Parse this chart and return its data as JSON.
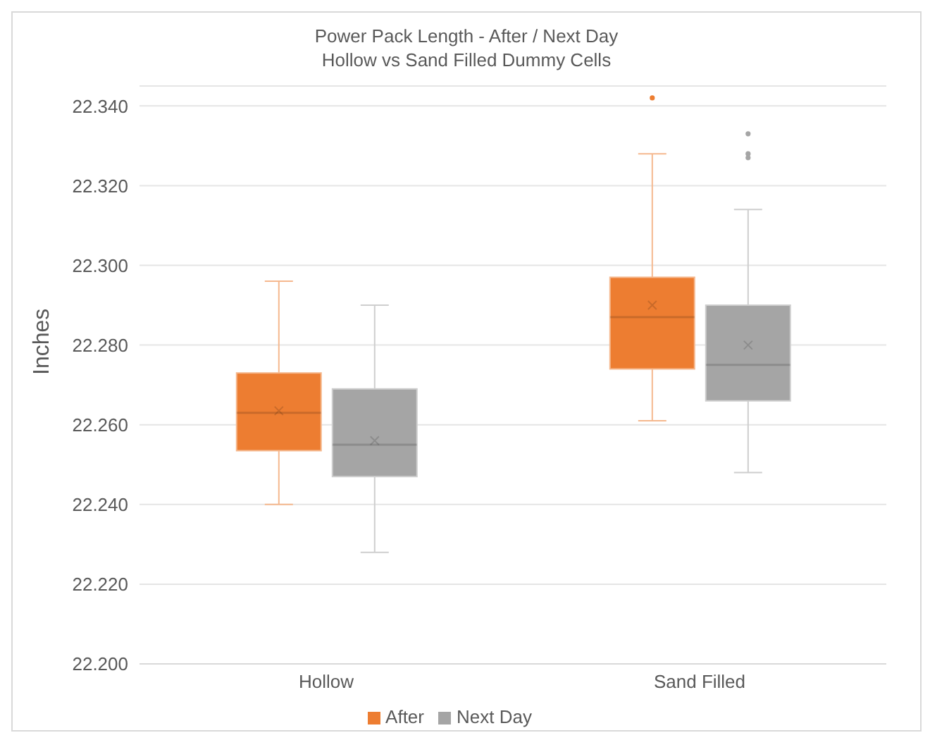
{
  "chart_data": {
    "type": "box",
    "title": "Power Pack Length - After / Next Day",
    "subtitle": "Hollow vs Sand Filled Dummy Cells",
    "ylabel": "Inches",
    "categories": [
      "Hollow",
      "Sand Filled"
    ],
    "series": [
      {
        "name": "After",
        "color": "#ed7d31",
        "boxes": [
          {
            "low": 22.24,
            "q1": 22.2535,
            "median": 22.263,
            "q3": 22.273,
            "high": 22.296,
            "mean": 22.2635
          },
          {
            "low": 22.261,
            "q1": 22.274,
            "median": 22.287,
            "q3": 22.297,
            "high": 22.328,
            "mean": 22.29,
            "outliers": [
              22.342
            ]
          }
        ]
      },
      {
        "name": "Next Day",
        "color": "#a5a5a5",
        "boxes": [
          {
            "low": 22.228,
            "q1": 22.247,
            "median": 22.255,
            "q3": 22.269,
            "high": 22.29,
            "mean": 22.256
          },
          {
            "low": 22.248,
            "q1": 22.266,
            "median": 22.275,
            "q3": 22.29,
            "high": 22.314,
            "mean": 22.28,
            "outliers": [
              22.333,
              22.328,
              22.327
            ]
          }
        ]
      }
    ],
    "ylim": [
      22.2,
      22.345
    ],
    "yticks": [
      {
        "value": 22.2,
        "label": "22.200"
      },
      {
        "value": 22.22,
        "label": "22.220"
      },
      {
        "value": 22.24,
        "label": "22.240"
      },
      {
        "value": 22.26,
        "label": "22.260"
      },
      {
        "value": 22.28,
        "label": "22.280"
      },
      {
        "value": 22.3,
        "label": "22.300"
      },
      {
        "value": 22.32,
        "label": "22.320"
      },
      {
        "value": 22.34,
        "label": "22.340"
      }
    ],
    "grid": "y",
    "legend": "bottom",
    "marker": "cross"
  }
}
